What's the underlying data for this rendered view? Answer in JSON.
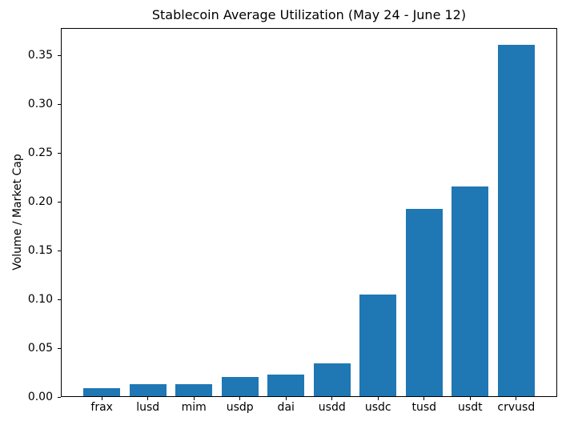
{
  "chart_data": {
    "type": "bar",
    "title": "Stablecoin Average Utilization (May 24 - June 12)",
    "xlabel": "",
    "ylabel": "Volume / Market Cap",
    "categories": [
      "frax",
      "lusd",
      "mim",
      "usdp",
      "dai",
      "usdd",
      "usdc",
      "tusd",
      "usdt",
      "crvusd"
    ],
    "values": [
      0.008,
      0.012,
      0.012,
      0.02,
      0.022,
      0.034,
      0.104,
      0.192,
      0.215,
      0.36
    ],
    "bar_color": "#1f77b4",
    "ylim": [
      0,
      0.378
    ],
    "yticks": [
      0,
      0.05,
      0.1,
      0.15,
      0.2,
      0.25,
      0.3,
      0.35
    ],
    "ytick_labels": [
      "0.00",
      "0.05",
      "0.10",
      "0.15",
      "0.20",
      "0.25",
      "0.30",
      "0.35"
    ],
    "grid": false,
    "legend_position": "none",
    "bar_width_fraction": 0.8,
    "x_margin_fraction": 0.05,
    "background_color": "#ffffff",
    "spine_color": "#000000",
    "text_color": "#000000"
  }
}
